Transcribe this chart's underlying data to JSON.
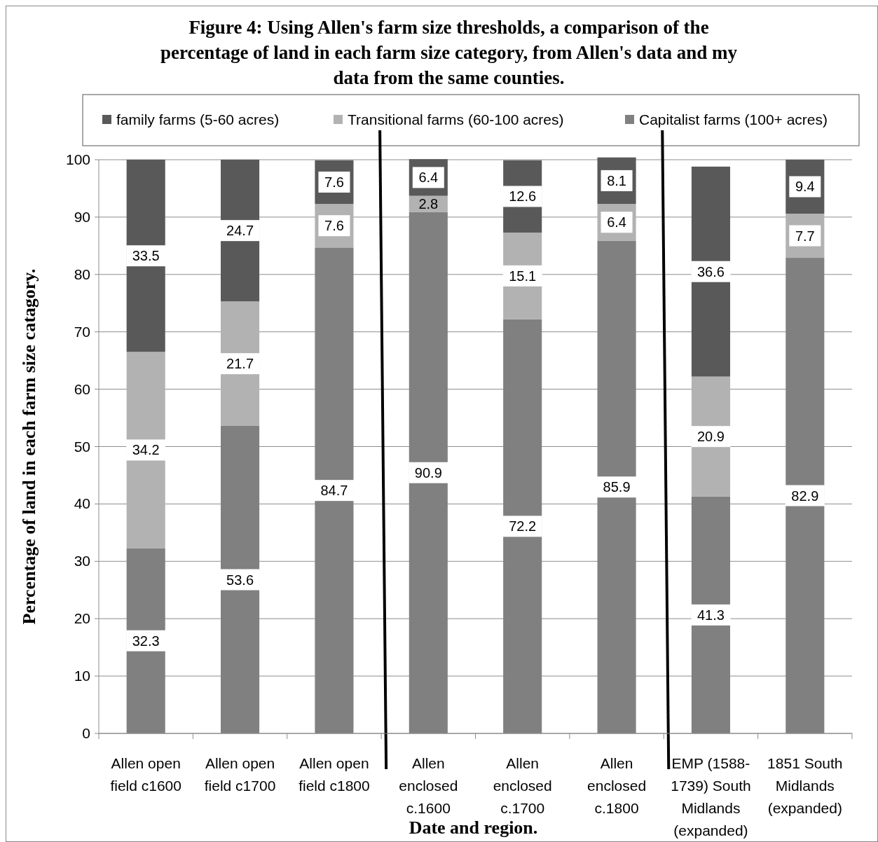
{
  "chart_data": {
    "type": "bar",
    "stacked": true,
    "title": "Figure 4: Using Allen's farm size thresholds, a comparison of the\npercentage of land in each farm size category, from Allen's data and my\ndata from the same counties.",
    "xlabel": "Date and region.",
    "ylabel": "Percentage of land in each farm size catagory.",
    "categories": [
      "Allen open\nfield c1600",
      "Allen open\nfield c1700",
      "Allen open\nfield c1800",
      "Allen\nenclosed\nc.1600",
      "Allen\nenclosed\nc.1700",
      "Allen\nenclosed\nc.1800",
      "EMP (1588-\n1739) South\nMidlands\n(expanded)",
      "1851 South\nMidlands\n(expanded)"
    ],
    "series": [
      {
        "name": "Capitalist farms (100+ acres)",
        "color": "#808080",
        "values": [
          32.3,
          53.6,
          84.7,
          90.9,
          72.2,
          85.9,
          41.3,
          82.9
        ]
      },
      {
        "name": "Transitional farms  (60-100 acres)",
        "color": "#b2b2b2",
        "values": [
          34.2,
          21.7,
          7.6,
          2.8,
          15.1,
          6.4,
          20.9,
          7.7
        ]
      },
      {
        "name": "family farms (5-60 acres)",
        "color": "#595959",
        "values": [
          33.5,
          24.7,
          7.6,
          6.4,
          12.6,
          8.1,
          36.6,
          9.4
        ]
      }
    ],
    "ylim": [
      0,
      100
    ],
    "yticks": [
      0,
      10,
      20,
      30,
      40,
      50,
      60,
      70,
      80,
      90,
      100
    ],
    "grid": "y",
    "legend": "top",
    "data_labels": true
  }
}
